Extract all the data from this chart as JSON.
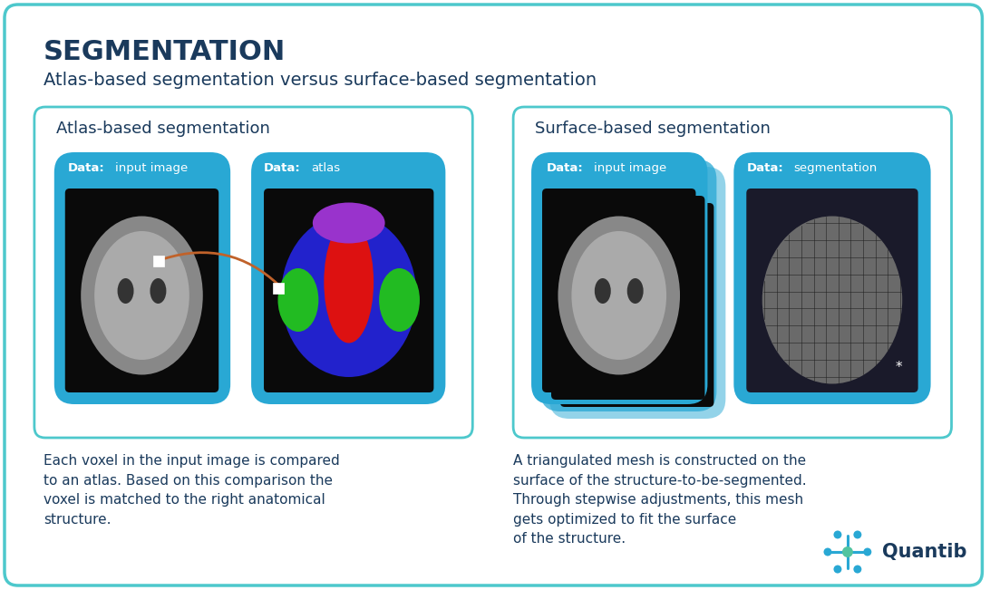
{
  "title": "SEGMENTATION",
  "subtitle": "Atlas-based segmentation versus surface-based segmentation",
  "bg_color": "#ffffff",
  "border_color": "#4dc8cc",
  "box_bg": "#29a8d4",
  "panel_border_color": "#4dc8cc",
  "title_color": "#1a3a5c",
  "subtitle_color": "#1a3a5c",
  "panel_title_color": "#1a3a5c",
  "desc_color": "#1a3a5c",
  "data_label_bold": "Data:",
  "left_panel_title": "Atlas-based segmentation",
  "right_panel_title": "Surface-based segmentation",
  "left_card1_label": "input image",
  "left_card2_label": "atlas",
  "right_card1_label": "input image",
  "right_card2_label": "segmentation",
  "left_desc": "Each voxel in the input image is compared\nto an atlas. Based on this comparison the\nvoxel is matched to the right anatomical\nstructure.",
  "right_desc": "A triangulated mesh is constructed on the\nsurface of the structure-to-be-segmented.\nThrough stepwise adjustments, this mesh\ngets optimized to fit the surface\nof the structure.",
  "quantib_text": "Quantib",
  "quantib_color": "#1a3a5c",
  "arrow_color": "#c0622a"
}
